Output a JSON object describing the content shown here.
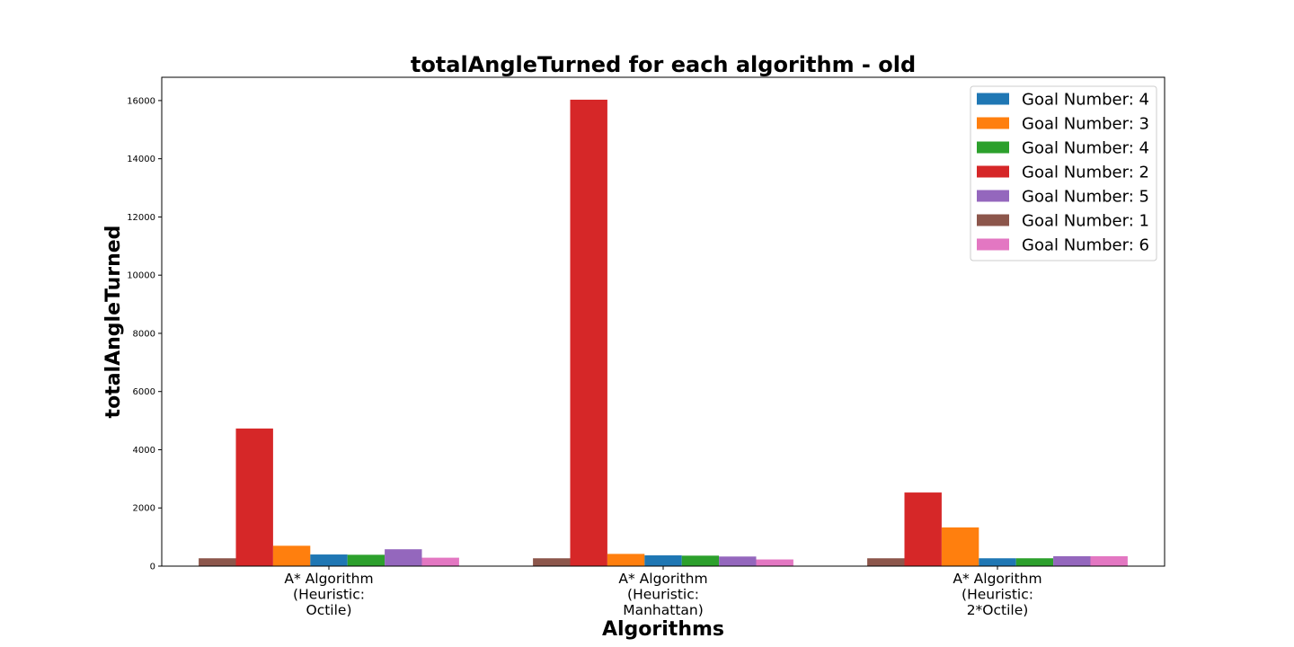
{
  "chart_data": {
    "type": "bar",
    "title": "totalAngleTurned for each algorithm - old",
    "xlabel": "Algorithms",
    "ylabel": "totalAngleTurned",
    "ylim": [
      0,
      16800
    ],
    "yticks": [
      "0",
      "2000",
      "4000",
      "6000",
      "8000",
      "10000",
      "12000",
      "14000",
      "16000"
    ],
    "categories": [
      [
        "A* Algorithm",
        "(Heuristic:",
        "Octile)"
      ],
      [
        "A* Algorithm",
        "(Heuristic:",
        "Manhattan)"
      ],
      [
        "A* Algorithm",
        "(Heuristic:",
        "2*Octile)"
      ]
    ],
    "bar_order": [
      5,
      3,
      1,
      0,
      2,
      4,
      6
    ],
    "legend_position": "upper right",
    "grid": false,
    "series": [
      {
        "name": "Goal Number: 4",
        "color": "#1f77b4",
        "values": [
          400,
          370,
          270
        ]
      },
      {
        "name": "Goal Number: 3",
        "color": "#ff7f0e",
        "values": [
          700,
          420,
          1330
        ]
      },
      {
        "name": "Goal Number: 4",
        "color": "#2ca02c",
        "values": [
          390,
          360,
          270
        ]
      },
      {
        "name": "Goal Number: 2",
        "color": "#d62728",
        "values": [
          4730,
          16030,
          2530
        ]
      },
      {
        "name": "Goal Number: 5",
        "color": "#9467bd",
        "values": [
          580,
          330,
          340
        ]
      },
      {
        "name": "Goal Number: 1",
        "color": "#8c564b",
        "values": [
          270,
          270,
          270
        ]
      },
      {
        "name": "Goal Number: 6",
        "color": "#e377c2",
        "values": [
          290,
          230,
          340
        ]
      }
    ]
  }
}
